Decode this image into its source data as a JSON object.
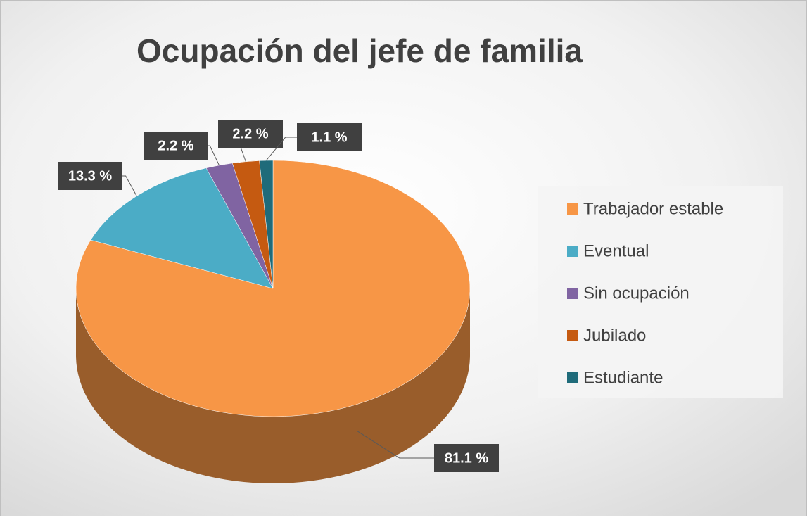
{
  "chart_data": {
    "type": "pie",
    "title": "Ocupación del jefe de familia",
    "categories": [
      "Trabajador estable",
      "Eventual",
      "Sin ocupación",
      "Jubilado",
      "Estudiante"
    ],
    "values": [
      81.1,
      13.3,
      2.2,
      2.2,
      1.1
    ],
    "value_labels": [
      "81.1 %",
      "13.3 %",
      "2.2 %",
      "2.2 %",
      "1.1 %"
    ],
    "colors": [
      "#f79646",
      "#4bacc6",
      "#8064a2",
      "#c55a11",
      "#1f6b7a"
    ],
    "legend": "right"
  }
}
